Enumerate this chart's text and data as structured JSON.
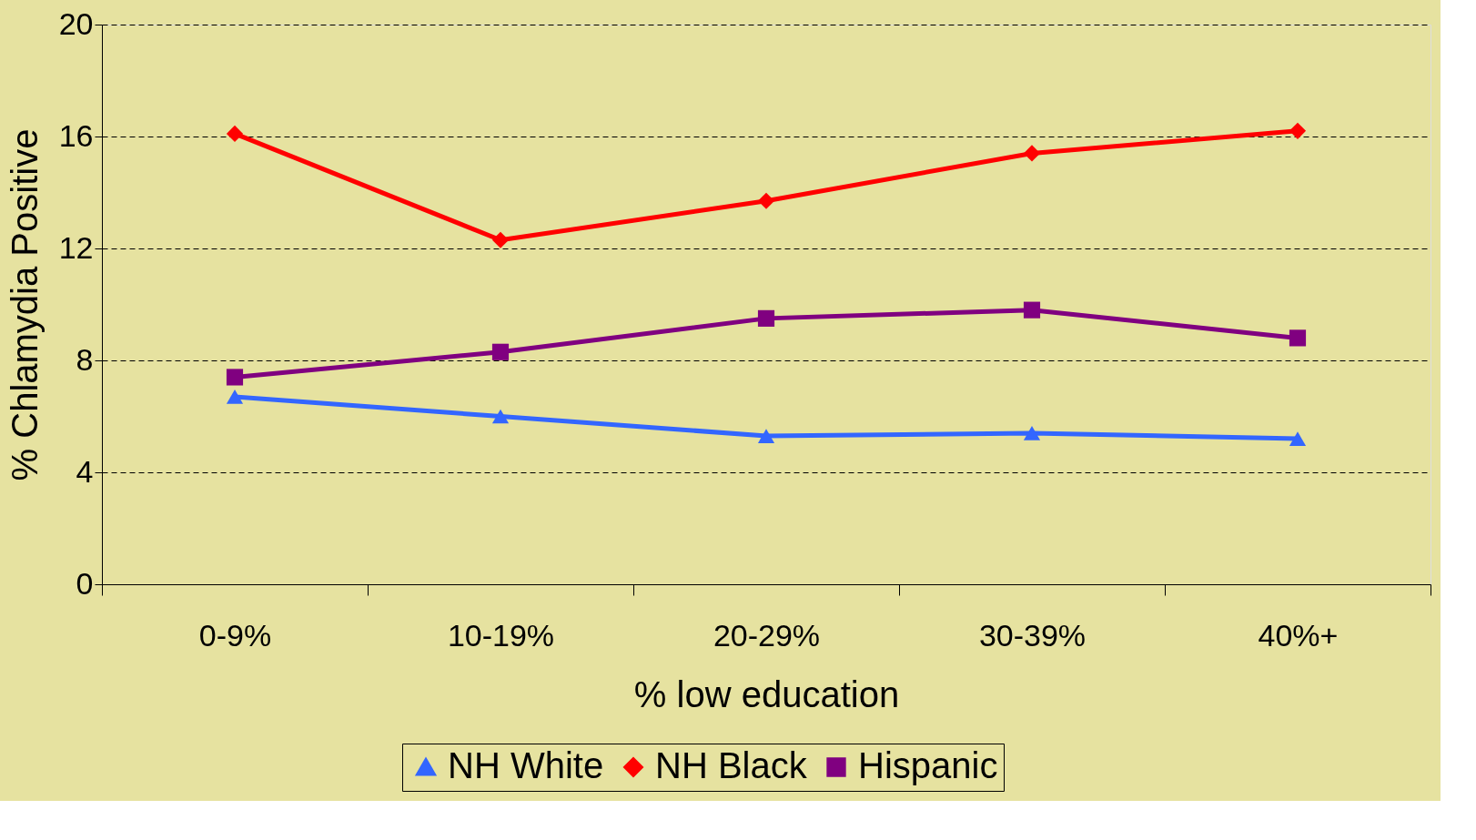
{
  "chart_data": {
    "type": "line",
    "xlabel": "% low education",
    "ylabel": "% Chlamydia Positive",
    "categories": [
      "0-9%",
      "10-19%",
      "20-29%",
      "30-39%",
      "40%+"
    ],
    "series": [
      {
        "name": "NH White",
        "color": "#3366ff",
        "marker": "triangle",
        "values": [
          6.7,
          6.0,
          5.3,
          5.4,
          5.2
        ]
      },
      {
        "name": "NH Black",
        "color": "#ff0000",
        "marker": "diamond",
        "values": [
          16.1,
          12.3,
          13.7,
          15.4,
          16.2
        ]
      },
      {
        "name": "Hispanic",
        "color": "#800080",
        "marker": "square",
        "values": [
          7.4,
          8.3,
          9.5,
          9.8,
          8.8
        ]
      }
    ],
    "ylim": [
      0,
      20
    ],
    "yticks": [
      0,
      4,
      8,
      12,
      16,
      20
    ],
    "grid": "y",
    "legend": "bottom",
    "line_style": "solid"
  }
}
